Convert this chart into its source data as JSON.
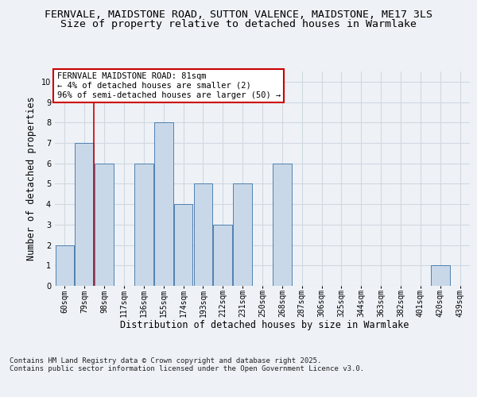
{
  "title_line1": "FERNVALE, MAIDSTONE ROAD, SUTTON VALENCE, MAIDSTONE, ME17 3LS",
  "title_line2": "Size of property relative to detached houses in Warmlake",
  "xlabel": "Distribution of detached houses by size in Warmlake",
  "ylabel": "Number of detached properties",
  "categories": [
    "60sqm",
    "79sqm",
    "98sqm",
    "117sqm",
    "136sqm",
    "155sqm",
    "174sqm",
    "193sqm",
    "212sqm",
    "231sqm",
    "250sqm",
    "268sqm",
    "287sqm",
    "306sqm",
    "325sqm",
    "344sqm",
    "363sqm",
    "382sqm",
    "401sqm",
    "420sqm",
    "439sqm"
  ],
  "values": [
    2,
    7,
    6,
    0,
    6,
    8,
    4,
    5,
    3,
    5,
    0,
    6,
    0,
    0,
    0,
    0,
    0,
    0,
    0,
    1,
    0
  ],
  "bar_color": "#c8d8e8",
  "bar_edge_color": "#5080b0",
  "grid_color": "#d0d8e0",
  "annotation_text": "FERNVALE MAIDSTONE ROAD: 81sqm\n← 4% of detached houses are smaller (2)\n96% of semi-detached houses are larger (50) →",
  "annotation_box_color": "#ffffff",
  "annotation_box_edge_color": "#cc0000",
  "vline_x": 1,
  "vline_color": "#cc0000",
  "ylim": [
    0,
    10.5
  ],
  "yticks": [
    0,
    1,
    2,
    3,
    4,
    5,
    6,
    7,
    8,
    9,
    10
  ],
  "footer_text": "Contains HM Land Registry data © Crown copyright and database right 2025.\nContains public sector information licensed under the Open Government Licence v3.0.",
  "background_color": "#eef2f7",
  "plot_background_color": "#eef2f7",
  "title_fontsize": 9.5,
  "subtitle_fontsize": 9.5,
  "axis_label_fontsize": 8.5,
  "tick_fontsize": 7,
  "annotation_fontsize": 7.5,
  "footer_fontsize": 6.5
}
